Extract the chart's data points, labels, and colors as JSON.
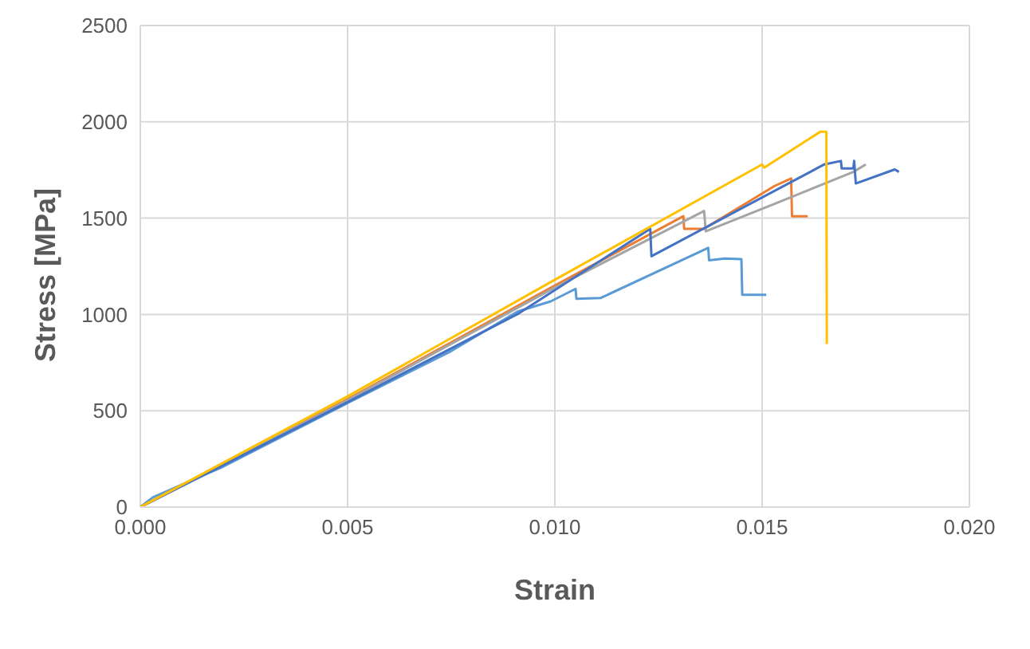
{
  "chart_data": {
    "type": "line",
    "xlabel": "Strain",
    "ylabel": "Stress [MPa]",
    "xlim": [
      0,
      0.02
    ],
    "xticks": [
      {
        "value": 0,
        "label": "0.000"
      },
      {
        "value": 0.005,
        "label": "0.005"
      },
      {
        "value": 0.01,
        "label": "0.010"
      },
      {
        "value": 0.015,
        "label": "0.015"
      },
      {
        "value": 0.02,
        "label": "0.020"
      }
    ],
    "ylim": [
      0,
      2500
    ],
    "yticks": [
      0,
      500,
      1000,
      1500,
      2000,
      2500
    ],
    "grid": true,
    "marker": "none",
    "line_style": "solid",
    "series": [
      {
        "color": "#5b9bd5",
        "x": [
          0,
          0.0003,
          0.002,
          0.005,
          0.0075,
          0.0091,
          0.0099,
          0.0105,
          0.01052,
          0.0111,
          0.0137,
          0.01372,
          0.0141,
          0.0145,
          0.01452,
          0.0151
        ],
        "values": [
          0,
          50,
          210,
          540,
          810,
          1015,
          1068,
          1133,
          1081,
          1085,
          1346,
          1281,
          1290,
          1287,
          1102,
          1102
        ]
      },
      {
        "color": "#ed7d31",
        "x": [
          0,
          0.005,
          0.01,
          0.0131,
          0.01312,
          0.0136,
          0.0153,
          0.0157,
          0.01572,
          0.0161
        ],
        "values": [
          0,
          560,
          1150,
          1510,
          1445,
          1445,
          1667,
          1706,
          1510,
          1510
        ]
      },
      {
        "color": "#a5a5a5",
        "x": [
          0,
          0.005,
          0.01,
          0.0136,
          0.01364,
          0.0156,
          0.0172,
          0.0175
        ],
        "values": [
          0,
          555,
          1140,
          1537,
          1432,
          1600,
          1740,
          1779
        ]
      },
      {
        "color": "#4472c4",
        "x": [
          0,
          0.005,
          0.0091,
          0.0123,
          0.01233,
          0.0165,
          0.0169,
          0.01692,
          0.0172,
          0.01722,
          0.01726,
          0.0182,
          0.0183
        ],
        "values": [
          0,
          545,
          1002,
          1445,
          1302,
          1779,
          1797,
          1758,
          1758,
          1797,
          1680,
          1753,
          1740
        ]
      },
      {
        "color": "#ffc000",
        "x": [
          0,
          0.005,
          0.01,
          0.015,
          0.01505,
          0.0164,
          0.01655,
          0.01656
        ],
        "values": [
          0,
          575,
          1180,
          1779,
          1762,
          1948,
          1948,
          846
        ]
      }
    ]
  }
}
